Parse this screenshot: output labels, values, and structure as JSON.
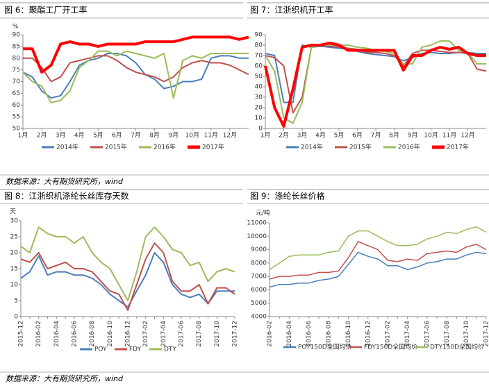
{
  "chart_data": [
    {
      "type": "line",
      "title": "图 6：聚酯工厂开工率",
      "y_label": "%",
      "x": [
        1,
        1.5,
        2,
        2.5,
        3,
        3.5,
        4,
        4.5,
        5,
        5.5,
        6,
        6.5,
        7,
        7.5,
        8,
        8.5,
        9,
        9.5,
        10,
        10.5,
        11,
        11.5,
        12,
        12.5,
        13
      ],
      "xlim": [
        1,
        13
      ],
      "xticks": [
        {
          "value": 1,
          "label": "1月"
        },
        {
          "value": 2,
          "label": "2月"
        },
        {
          "value": 3,
          "label": "3月"
        },
        {
          "value": 4,
          "label": "4月"
        },
        {
          "value": 5,
          "label": "5月"
        },
        {
          "value": 6,
          "label": "6月"
        },
        {
          "value": 7,
          "label": "7月"
        },
        {
          "value": 8,
          "label": "8月"
        },
        {
          "value": 9,
          "label": "9月"
        },
        {
          "value": 10,
          "label": "10月"
        },
        {
          "value": 11,
          "label": "11月"
        },
        {
          "value": 12,
          "label": "12月"
        }
      ],
      "ylim": [
        50,
        90
      ],
      "yticks": [
        50,
        55,
        60,
        65,
        70,
        75,
        80,
        85,
        90
      ],
      "grid": false,
      "series": [
        {
          "name": "2014年",
          "color": "#4a7ebb",
          "width": 2,
          "values": [
            74,
            72,
            66,
            63,
            64,
            70,
            77,
            79,
            80,
            82,
            82,
            81,
            78,
            73,
            71,
            67,
            68,
            70,
            70,
            71,
            80,
            81,
            81,
            80,
            80
          ]
        },
        {
          "name": "2015年",
          "color": "#c0504d",
          "width": 2,
          "values": [
            80,
            80,
            76,
            70,
            72,
            78,
            79,
            80,
            81,
            81,
            79,
            76,
            74,
            73,
            72,
            70,
            72,
            76,
            78,
            79,
            78,
            78,
            77,
            75,
            73
          ]
        },
        {
          "name": "2016年",
          "color": "#9bbb59",
          "width": 2,
          "values": [
            74,
            70,
            68,
            61,
            62,
            66,
            76,
            79,
            83,
            83,
            81,
            83,
            82,
            81,
            80,
            82,
            63,
            79,
            81,
            80,
            82,
            82,
            82,
            82,
            82
          ]
        },
        {
          "name": "2017年",
          "color": "#ff0000",
          "width": 4,
          "values": [
            84,
            84,
            74,
            77,
            86,
            87,
            86,
            86,
            85,
            86,
            86,
            86,
            86,
            87,
            87,
            87,
            87,
            88,
            89,
            89,
            89,
            89,
            89,
            88,
            89
          ]
        }
      ]
    },
    {
      "type": "line",
      "title": "图 7：江浙织机开工率",
      "x": [
        1,
        1.5,
        2,
        2.5,
        3,
        3.5,
        4,
        4.5,
        5,
        5.5,
        6,
        6.5,
        7,
        7.5,
        8,
        8.5,
        9,
        9.5,
        10,
        10.5,
        11,
        11.5,
        12,
        12.5,
        13
      ],
      "xlim": [
        1,
        13
      ],
      "xticks": [
        {
          "value": 1,
          "label": "1月"
        },
        {
          "value": 2,
          "label": "2月"
        },
        {
          "value": 3,
          "label": "3月"
        },
        {
          "value": 4,
          "label": "4月"
        },
        {
          "value": 5,
          "label": "5月"
        },
        {
          "value": 6,
          "label": "6月"
        },
        {
          "value": 7,
          "label": "7月"
        },
        {
          "value": 8,
          "label": "8月"
        },
        {
          "value": 9,
          "label": "9月"
        },
        {
          "value": 10,
          "label": "10月"
        },
        {
          "value": 11,
          "label": "11月"
        },
        {
          "value": 12,
          "label": "12月"
        }
      ],
      "ylim": [
        0,
        90
      ],
      "yticks": [
        0,
        10,
        20,
        30,
        40,
        50,
        60,
        70,
        80,
        90
      ],
      "grid": false,
      "series": [
        {
          "name": "2014年",
          "color": "#4a7ebb",
          "width": 2,
          "values": [
            72,
            70,
            25,
            25,
            80,
            78,
            79,
            78,
            77,
            76,
            74,
            72,
            71,
            70,
            69,
            65,
            68,
            72,
            73,
            72,
            72,
            73,
            73,
            72,
            72
          ]
        },
        {
          "name": "2015年",
          "color": "#c0504d",
          "width": 2,
          "values": [
            70,
            68,
            60,
            15,
            30,
            78,
            80,
            79,
            78,
            77,
            76,
            73,
            73,
            72,
            70,
            60,
            72,
            75,
            75,
            74,
            73,
            73,
            72,
            57,
            55
          ]
        },
        {
          "name": "2016年",
          "color": "#9bbb59",
          "width": 2,
          "values": [
            70,
            55,
            10,
            5,
            25,
            78,
            80,
            80,
            80,
            80,
            78,
            77,
            75,
            74,
            72,
            62,
            62,
            78,
            80,
            84,
            84,
            75,
            73,
            62,
            62
          ]
        },
        {
          "name": "2017年",
          "color": "#ff0000",
          "width": 4,
          "values": [
            60,
            20,
            2,
            38,
            78,
            80,
            80,
            82,
            80,
            75,
            75,
            75,
            75,
            75,
            75,
            56,
            70,
            70,
            75,
            78,
            76,
            78,
            72,
            70,
            70
          ]
        }
      ]
    },
    {
      "type": "line",
      "title": "图 8：江浙织机涤纶长丝库存天数",
      "y_label": "天",
      "categories": [
        "2015-12",
        null,
        "2016-02",
        null,
        "2016-04",
        null,
        "2016-06",
        null,
        "2016-08",
        null,
        "2016-10",
        null,
        "2016-12",
        null,
        "2017-02",
        null,
        "2017-04",
        null,
        "2017-06",
        null,
        "2017-08",
        null,
        "2017-10",
        null,
        "2017-12"
      ],
      "ylim": [
        0,
        30
      ],
      "yticks": [
        0,
        5,
        10,
        15,
        20,
        25,
        30
      ],
      "grid": false,
      "series": [
        {
          "name": "POY",
          "color": "#4a7ebb",
          "width": 2,
          "values": [
            12,
            14,
            19,
            13,
            14,
            14,
            13,
            13,
            12,
            10,
            7,
            5,
            3,
            8,
            13,
            20,
            17,
            10,
            7,
            6,
            7,
            4,
            8,
            8,
            8
          ]
        },
        {
          "name": "FDY",
          "color": "#c0504d",
          "width": 2,
          "values": [
            18,
            17,
            20,
            15,
            16,
            17,
            15,
            15,
            14,
            11,
            8,
            7,
            2,
            10,
            18,
            23,
            20,
            11,
            8,
            8,
            10,
            4,
            9,
            9,
            7
          ]
        },
        {
          "name": "DTY",
          "color": "#9bbb59",
          "width": 2,
          "values": [
            22,
            20,
            28,
            26,
            25,
            25,
            23,
            25,
            20,
            17,
            15,
            10,
            5,
            14,
            25,
            28,
            25,
            21,
            20,
            16,
            17,
            11,
            14,
            15,
            14
          ]
        }
      ]
    },
    {
      "type": "line",
      "title": "图 9：涤纶长丝价格",
      "y_label": "元/吨",
      "categories": [
        "2016-02",
        null,
        "2016-04",
        null,
        "2016-06",
        null,
        "2016-08",
        null,
        "2016-10",
        null,
        "2016-12",
        null,
        "2017-02",
        null,
        "2017-04",
        null,
        "2017-06",
        null,
        "2017-08",
        null,
        "2017-10",
        null,
        "2017-12"
      ],
      "ylim": [
        4000,
        11000
      ],
      "yticks": [
        4000,
        5000,
        6000,
        7000,
        8000,
        9000,
        10000,
        11000
      ],
      "grid": false,
      "series": [
        {
          "name": "POY150D全国均价",
          "color": "#4a7ebb",
          "width": 1.5,
          "values": [
            6200,
            6400,
            6400,
            6500,
            6500,
            6700,
            6800,
            7000,
            7900,
            8800,
            8500,
            8300,
            7800,
            7800,
            7500,
            7700,
            8000,
            8100,
            8300,
            8300,
            8600,
            8800,
            8700
          ]
        },
        {
          "name": "FDY150D全国均价",
          "color": "#c0504d",
          "width": 1.5,
          "values": [
            6800,
            7000,
            7000,
            7100,
            7100,
            7300,
            7300,
            7400,
            8400,
            9600,
            9300,
            9000,
            8200,
            8100,
            8300,
            8200,
            8700,
            8800,
            8900,
            8800,
            9200,
            9400,
            9000
          ]
        },
        {
          "name": "DTY150D全国均价",
          "color": "#9bbb59",
          "width": 1.5,
          "values": [
            7500,
            8000,
            8500,
            8600,
            8600,
            8600,
            8800,
            8900,
            10000,
            10400,
            10400,
            10000,
            9600,
            9300,
            9300,
            9400,
            9800,
            10000,
            10300,
            10200,
            10500,
            10700,
            10300
          ]
        }
      ]
    }
  ],
  "notes": [
    "数据来源：大有期货研究所，wind",
    "数据来源：大有期货研究所，wind"
  ]
}
